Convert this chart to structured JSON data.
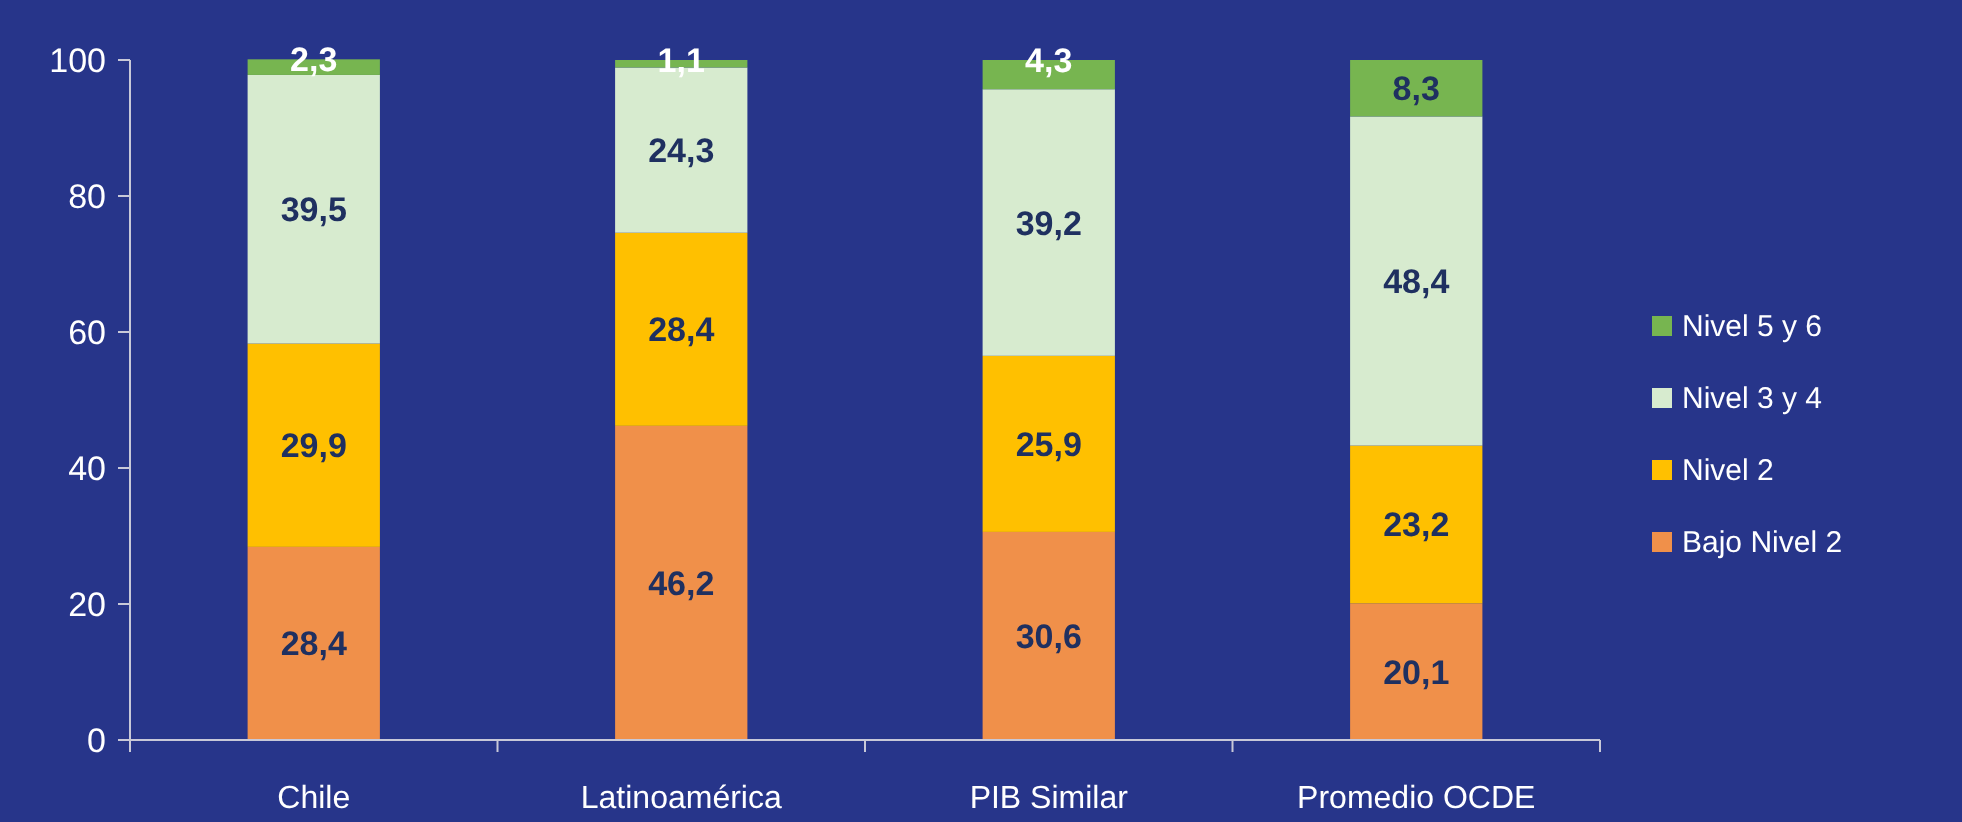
{
  "chart_data": {
    "type": "bar",
    "stacked": true,
    "categories": [
      "Chile",
      "Latinoamérica",
      "PIB Similar",
      "Promedio OCDE"
    ],
    "series": [
      {
        "name": "Bajo Nivel 2",
        "color": "#f0904a",
        "values": [
          28.4,
          46.2,
          30.6,
          20.1
        ],
        "value_labels": [
          "28,4",
          "46,2",
          "30,6",
          "20,1"
        ]
      },
      {
        "name": "Nivel 2",
        "color": "#ffc000",
        "values": [
          29.9,
          28.4,
          25.9,
          23.2
        ],
        "value_labels": [
          "29,9",
          "28,4",
          "25,9",
          "23,2"
        ]
      },
      {
        "name": "Nivel 3 y 4",
        "color": "#d7ebcf",
        "values": [
          39.5,
          24.3,
          39.2,
          48.4
        ],
        "value_labels": [
          "39,5",
          "24,3",
          "39,2",
          "48,4"
        ]
      },
      {
        "name": "Nivel 5 y 6",
        "color": "#77b550",
        "values": [
          2.3,
          1.1,
          4.3,
          8.3
        ],
        "value_labels": [
          "2,3",
          "1,1",
          "4,3",
          "8,3"
        ]
      }
    ],
    "ylim": [
      0,
      100
    ],
    "yticks": [
      0,
      20,
      40,
      60,
      80,
      100
    ],
    "grid": false,
    "legend": "right"
  }
}
